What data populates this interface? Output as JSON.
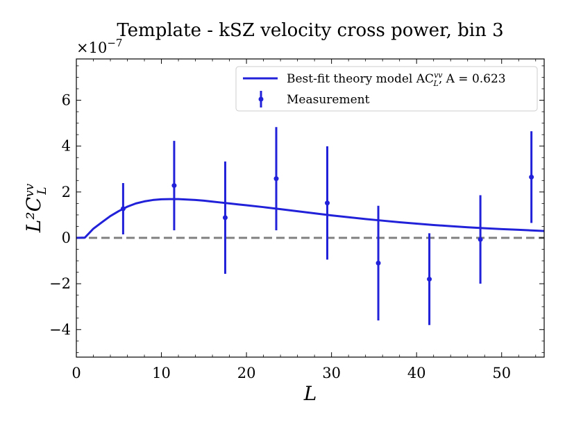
{
  "chart_data": {
    "type": "line",
    "title": "Template - kSZ velocity cross power, bin 3",
    "xlabel": "L",
    "ylabel": "L²C",
    "ylabel_sup": "vv",
    "ylabel_sub": "L",
    "offset_text": "×10",
    "offset_exp": "−7",
    "xlim": [
      0,
      55
    ],
    "ylim": [
      -5.2,
      7.8
    ],
    "scale": 1e-07,
    "x_ticks": [
      0,
      10,
      20,
      30,
      40,
      50
    ],
    "x_tick_labels": [
      "0",
      "10",
      "20",
      "30",
      "40",
      "50"
    ],
    "y_ticks": [
      -4,
      -2,
      0,
      2,
      4,
      6
    ],
    "y_tick_labels": [
      "−4",
      "−2",
      "0",
      "2",
      "4",
      "6"
    ],
    "zero_line": 0,
    "legend_position": "top-right",
    "colors": {
      "model": "#2121d9",
      "measurement": "#2121d9",
      "zero": "#808080"
    },
    "series": [
      {
        "name": "Best-fit theory model",
        "legend_main": "Best-fit theory model AC",
        "legend_sup": "vv",
        "legend_sub": "L",
        "legend_tail": ", A = 0.623",
        "kind": "line",
        "x": [
          0,
          1,
          2,
          3,
          4,
          5,
          6,
          7,
          8,
          9,
          10,
          11,
          12,
          13,
          14,
          15,
          16,
          17,
          18,
          19,
          20,
          22,
          24,
          26,
          28,
          30,
          32,
          34,
          36,
          38,
          40,
          42,
          44,
          46,
          48,
          50,
          52,
          55
        ],
        "y": [
          0,
          0.01,
          0.4,
          0.68,
          0.95,
          1.17,
          1.36,
          1.5,
          1.59,
          1.65,
          1.68,
          1.69,
          1.69,
          1.67,
          1.65,
          1.62,
          1.58,
          1.54,
          1.5,
          1.46,
          1.42,
          1.34,
          1.25,
          1.16,
          1.07,
          0.98,
          0.9,
          0.82,
          0.75,
          0.68,
          0.62,
          0.56,
          0.51,
          0.46,
          0.42,
          0.38,
          0.35,
          0.3
        ]
      },
      {
        "name": "Measurement",
        "kind": "errorbar",
        "x": [
          5.5,
          11.5,
          17.5,
          23.5,
          29.5,
          35.5,
          41.5,
          47.5,
          53.5
        ],
        "y": [
          1.27,
          2.28,
          0.88,
          2.58,
          1.52,
          -1.1,
          -1.8,
          -0.07,
          2.65
        ],
        "yerr": [
          1.12,
          1.95,
          2.45,
          2.25,
          2.47,
          2.5,
          2.0,
          1.93,
          2.0
        ]
      }
    ]
  }
}
